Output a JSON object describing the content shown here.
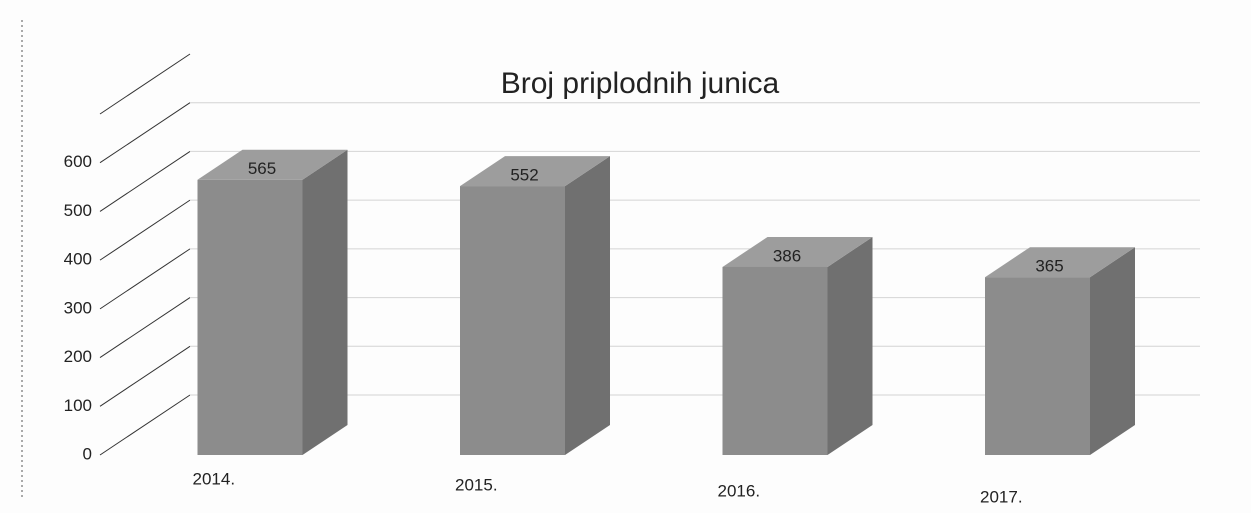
{
  "chart_data": {
    "type": "bar3d",
    "title": "Broj priplodnih junica",
    "categories": [
      "2014.",
      "2015.",
      "2016.",
      "2017."
    ],
    "values": [
      565,
      552,
      386,
      365
    ],
    "color": "#8c8c8c",
    "ylim": [
      0,
      700
    ],
    "yticks": [
      0,
      100,
      200,
      300,
      400,
      500,
      600
    ],
    "grid": true
  }
}
